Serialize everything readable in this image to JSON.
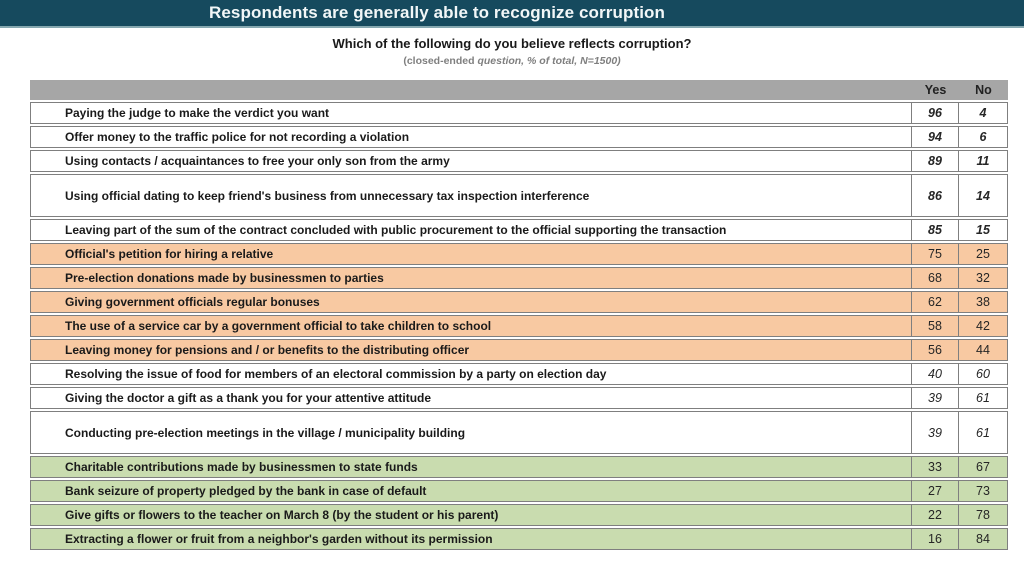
{
  "header": {
    "title": "Respondents are generally able to recognize corruption",
    "subtitle": "Which of the following do you believe reflects corruption?",
    "note_regular": "(closed-ended ",
    "note_italic": "question, % of total, N=1500)"
  },
  "colors": {
    "title_bar": "#164A5E",
    "title_bar_border": "#86A8B0",
    "header_row_gray": "#A6A6A6",
    "group_orange": "#F8C9A2",
    "group_green": "#C9DCAF",
    "border_gray": "#7F7F7F",
    "note_gray": "#7F7F7F"
  },
  "chart_data": {
    "type": "table",
    "title": "Respondents are generally able to recognize corruption",
    "subtitle": "Which of the following do you believe reflects corruption?",
    "note": "(closed-ended question, % of total, N=1500)",
    "columns": [
      "Yes",
      "No"
    ],
    "rows": [
      {
        "label": "Paying the judge to make the verdict you want",
        "yes": 96,
        "no": 4,
        "bg": "white",
        "num_style": "bold-italic",
        "tall": false
      },
      {
        "label": "Offer money to the traffic police for not recording a violation",
        "yes": 94,
        "no": 6,
        "bg": "white",
        "num_style": "bold-italic",
        "tall": false
      },
      {
        "label": "Using contacts / acquaintances to free your only son from the army",
        "yes": 89,
        "no": 11,
        "bg": "white",
        "num_style": "bold-italic",
        "tall": false
      },
      {
        "label": "Using official dating to keep friend's business from unnecessary tax inspection interference",
        "yes": 86,
        "no": 14,
        "bg": "white",
        "num_style": "bold-italic",
        "tall": true
      },
      {
        "label": "Leaving part of the sum of the contract concluded with public procurement to the official supporting the transaction",
        "yes": 85,
        "no": 15,
        "bg": "white",
        "num_style": "bold-italic",
        "tall": false
      },
      {
        "label": "Official's petition for hiring a relative",
        "yes": 75,
        "no": 25,
        "bg": "orange",
        "num_style": "plain",
        "tall": false
      },
      {
        "label": "Pre-election donations made by businessmen to parties",
        "yes": 68,
        "no": 32,
        "bg": "orange",
        "num_style": "plain",
        "tall": false
      },
      {
        "label": "Giving government officials regular bonuses",
        "yes": 62,
        "no": 38,
        "bg": "orange",
        "num_style": "plain",
        "tall": false
      },
      {
        "label": "The use of a service car by a government official to take children to school",
        "yes": 58,
        "no": 42,
        "bg": "orange",
        "num_style": "plain",
        "tall": false
      },
      {
        "label": "Leaving money for pensions and / or benefits to the distributing officer",
        "yes": 56,
        "no": 44,
        "bg": "orange",
        "num_style": "plain",
        "tall": false
      },
      {
        "label": "Resolving the issue of food for members of an electoral commission by a party on election day",
        "yes": 40,
        "no": 60,
        "bg": "white",
        "num_style": "italic",
        "tall": false
      },
      {
        "label": "Giving the doctor a gift as a thank you for your attentive attitude",
        "yes": 39,
        "no": 61,
        "bg": "white",
        "num_style": "italic",
        "tall": false
      },
      {
        "label": "Conducting pre-election meetings in the village / municipality building",
        "yes": 39,
        "no": 61,
        "bg": "white",
        "num_style": "italic",
        "tall": true
      },
      {
        "label": "Charitable contributions made by businessmen to state funds",
        "yes": 33,
        "no": 67,
        "bg": "green",
        "num_style": "plain",
        "tall": false
      },
      {
        "label": "Bank seizure of property pledged by the bank in case of default",
        "yes": 27,
        "no": 73,
        "bg": "green",
        "num_style": "plain",
        "tall": false
      },
      {
        "label": "Give gifts or flowers to the teacher on March 8 (by the student or his parent)",
        "yes": 22,
        "no": 78,
        "bg": "green",
        "num_style": "plain",
        "tall": false
      },
      {
        "label": "Extracting a flower or fruit from a neighbor's garden without its permission",
        "yes": 16,
        "no": 84,
        "bg": "green",
        "num_style": "plain",
        "tall": false
      }
    ]
  }
}
